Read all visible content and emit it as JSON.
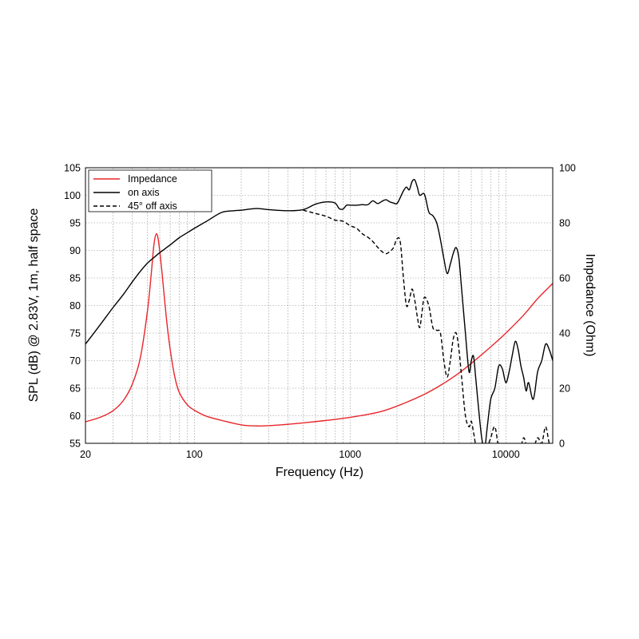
{
  "chart_data": {
    "type": "line",
    "xlabel": "Frequency (Hz)",
    "ylabel_left": "SPL (dB) @ 2.83V, 1m, half space",
    "ylabel_right": "Impedance (Ohm)",
    "x_scale": "log",
    "xlim": [
      20,
      20000
    ],
    "ylim_left": [
      55,
      105
    ],
    "ylim_right": [
      0,
      100
    ],
    "x_ticks": [
      {
        "value": 20,
        "label": "20"
      },
      {
        "value": 100,
        "label": "100"
      },
      {
        "value": 1000,
        "label": "1000"
      },
      {
        "value": 10000,
        "label": "10000"
      }
    ],
    "y_ticks_left": [
      "55",
      "60",
      "65",
      "70",
      "75",
      "80",
      "85",
      "90",
      "95",
      "100",
      "105"
    ],
    "y_ticks_right": [
      "0",
      "20",
      "40",
      "60",
      "80",
      "100"
    ],
    "grid": true,
    "legend_position": "top-left",
    "series": [
      {
        "name": "Impedance",
        "axis": "right",
        "color": "#e8262b",
        "dash": "solid",
        "points": [
          [
            20,
            7.8
          ],
          [
            25,
            9.5
          ],
          [
            30,
            11.8
          ],
          [
            35,
            15.5
          ],
          [
            40,
            21.5
          ],
          [
            45,
            31
          ],
          [
            50,
            48
          ],
          [
            53,
            62
          ],
          [
            55,
            72
          ],
          [
            57,
            76
          ],
          [
            59,
            73
          ],
          [
            62,
            62
          ],
          [
            66,
            46
          ],
          [
            70,
            34
          ],
          [
            75,
            24
          ],
          [
            80,
            18.5
          ],
          [
            90,
            14
          ],
          [
            100,
            12
          ],
          [
            120,
            9.8
          ],
          [
            150,
            8.3
          ],
          [
            200,
            6.7
          ],
          [
            250,
            6.3
          ],
          [
            300,
            6.4
          ],
          [
            400,
            6.9
          ],
          [
            500,
            7.4
          ],
          [
            700,
            8.3
          ],
          [
            1000,
            9.4
          ],
          [
            1500,
            11.2
          ],
          [
            2000,
            13.5
          ],
          [
            3000,
            17.8
          ],
          [
            4000,
            21.8
          ],
          [
            5000,
            25.5
          ],
          [
            6000,
            29
          ],
          [
            8000,
            35
          ],
          [
            10000,
            40
          ],
          [
            13000,
            46.5
          ],
          [
            16000,
            52.5
          ],
          [
            20000,
            58
          ]
        ]
      },
      {
        "name": "on axis",
        "axis": "left",
        "color": "#000000",
        "dash": "solid",
        "points": [
          [
            20,
            73
          ],
          [
            25,
            76.6
          ],
          [
            30,
            79.6
          ],
          [
            35,
            82
          ],
          [
            40,
            84.3
          ],
          [
            45,
            86.2
          ],
          [
            50,
            87.7
          ],
          [
            55,
            88.7
          ],
          [
            60,
            89.6
          ],
          [
            70,
            91
          ],
          [
            80,
            92.3
          ],
          [
            90,
            93.2
          ],
          [
            100,
            94
          ],
          [
            120,
            95.3
          ],
          [
            150,
            96.9
          ],
          [
            180,
            97.2
          ],
          [
            200,
            97.3
          ],
          [
            250,
            97.6
          ],
          [
            300,
            97.4
          ],
          [
            400,
            97.2
          ],
          [
            500,
            97.4
          ],
          [
            600,
            98.4
          ],
          [
            700,
            98.8
          ],
          [
            800,
            98.6
          ],
          [
            850,
            97.6
          ],
          [
            900,
            97.5
          ],
          [
            950,
            98.2
          ],
          [
            1000,
            98.2
          ],
          [
            1100,
            98.2
          ],
          [
            1200,
            98.3
          ],
          [
            1300,
            98.3
          ],
          [
            1400,
            99
          ],
          [
            1500,
            98.5
          ],
          [
            1600,
            98.9
          ],
          [
            1700,
            99.2
          ],
          [
            1800,
            98.8
          ],
          [
            1900,
            98.6
          ],
          [
            2000,
            98.5
          ],
          [
            2100,
            99.6
          ],
          [
            2200,
            100.8
          ],
          [
            2300,
            101.5
          ],
          [
            2400,
            101
          ],
          [
            2500,
            102.5
          ],
          [
            2600,
            102.8
          ],
          [
            2700,
            101.5
          ],
          [
            2800,
            100
          ],
          [
            3000,
            100.2
          ],
          [
            3200,
            97
          ],
          [
            3400,
            96.3
          ],
          [
            3600,
            95
          ],
          [
            3800,
            92
          ],
          [
            4000,
            88.5
          ],
          [
            4200,
            85.8
          ],
          [
            4400,
            87.5
          ],
          [
            4600,
            89.5
          ],
          [
            4800,
            90.5
          ],
          [
            5000,
            88.5
          ],
          [
            5200,
            83
          ],
          [
            5500,
            75
          ],
          [
            5800,
            68
          ],
          [
            6000,
            70
          ],
          [
            6200,
            70.8
          ],
          [
            6400,
            67
          ],
          [
            6700,
            61
          ],
          [
            7000,
            56
          ],
          [
            7300,
            54
          ],
          [
            7600,
            58
          ],
          [
            8000,
            63
          ],
          [
            8500,
            65
          ],
          [
            9000,
            69
          ],
          [
            9500,
            68.5
          ],
          [
            10000,
            66
          ],
          [
            10500,
            68
          ],
          [
            11000,
            71
          ],
          [
            11500,
            73.5
          ],
          [
            12000,
            72
          ],
          [
            12500,
            69
          ],
          [
            13000,
            67
          ],
          [
            13500,
            64.5
          ],
          [
            14000,
            66
          ],
          [
            15000,
            63
          ],
          [
            16000,
            68
          ],
          [
            17000,
            70
          ],
          [
            18000,
            73
          ],
          [
            19000,
            72
          ],
          [
            20000,
            70
          ]
        ]
      },
      {
        "name": "45° off axis",
        "axis": "left",
        "color": "#000000",
        "dash": "dashed",
        "points": [
          [
            500,
            97.3
          ],
          [
            600,
            96.7
          ],
          [
            700,
            96.2
          ],
          [
            800,
            95.5
          ],
          [
            900,
            95.3
          ],
          [
            1000,
            94.5
          ],
          [
            1100,
            94
          ],
          [
            1200,
            93
          ],
          [
            1300,
            92.4
          ],
          [
            1400,
            91.6
          ],
          [
            1500,
            90.6
          ],
          [
            1600,
            89.8
          ],
          [
            1700,
            89.4
          ],
          [
            1800,
            89.8
          ],
          [
            1900,
            90.5
          ],
          [
            2000,
            92.1
          ],
          [
            2100,
            91.5
          ],
          [
            2200,
            85
          ],
          [
            2300,
            80
          ],
          [
            2400,
            81
          ],
          [
            2500,
            83
          ],
          [
            2600,
            81
          ],
          [
            2700,
            78
          ],
          [
            2800,
            76
          ],
          [
            2900,
            79
          ],
          [
            3000,
            81.5
          ],
          [
            3200,
            80
          ],
          [
            3400,
            76
          ],
          [
            3600,
            75.5
          ],
          [
            3800,
            75
          ],
          [
            4000,
            70
          ],
          [
            4200,
            67
          ],
          [
            4400,
            70
          ],
          [
            4600,
            74
          ],
          [
            4800,
            75
          ],
          [
            5000,
            72
          ],
          [
            5200,
            67
          ],
          [
            5500,
            60
          ],
          [
            5800,
            58
          ],
          [
            6000,
            59
          ],
          [
            6200,
            57
          ],
          [
            6500,
            54
          ],
          [
            7000,
            53
          ],
          [
            7500,
            54
          ],
          [
            8000,
            56
          ],
          [
            8500,
            58
          ],
          [
            9000,
            54
          ],
          [
            9500,
            52
          ],
          [
            10000,
            53
          ],
          [
            11000,
            54
          ],
          [
            12000,
            52
          ],
          [
            13000,
            56
          ],
          [
            14000,
            53
          ],
          [
            15000,
            54
          ],
          [
            16000,
            56
          ],
          [
            17000,
            55
          ],
          [
            18000,
            58
          ],
          [
            19000,
            55
          ],
          [
            20000,
            54
          ]
        ]
      }
    ]
  }
}
